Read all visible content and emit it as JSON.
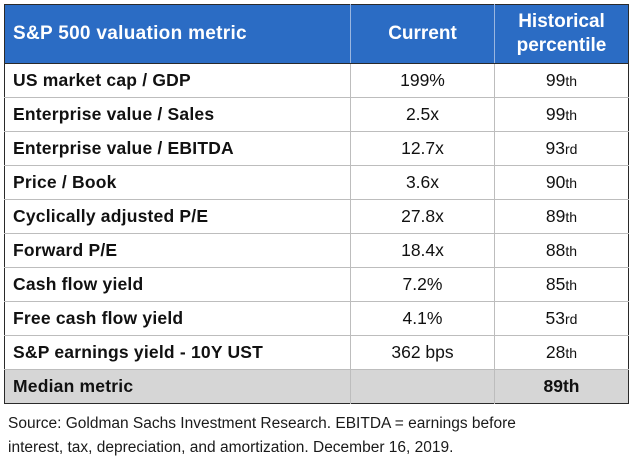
{
  "table": {
    "header": {
      "metric": "S&P 500 valuation metric",
      "current": "Current",
      "percentile_line1": "Historical",
      "percentile_line2": "percentile"
    },
    "rows": [
      {
        "metric": "US market cap / GDP",
        "current": "199%",
        "pct_num": "99",
        "pct_suffix": "th"
      },
      {
        "metric": "Enterprise value / Sales",
        "current": "2.5x",
        "pct_num": "99",
        "pct_suffix": "th"
      },
      {
        "metric": "Enterprise value / EBITDA",
        "current": "12.7x",
        "pct_num": "93",
        "pct_suffix": "rd"
      },
      {
        "metric": "Price / Book",
        "current": "3.6x",
        "pct_num": "90",
        "pct_suffix": "th"
      },
      {
        "metric": "Cyclically adjusted P/E",
        "current": "27.8x",
        "pct_num": "89",
        "pct_suffix": "th"
      },
      {
        "metric": "Forward P/E",
        "current": "18.4x",
        "pct_num": "88",
        "pct_suffix": "th"
      },
      {
        "metric": "Cash flow yield",
        "current": "7.2%",
        "pct_num": "85",
        "pct_suffix": "th"
      },
      {
        "metric": "Free cash flow yield",
        "current": "4.1%",
        "pct_num": "53",
        "pct_suffix": "rd"
      },
      {
        "metric": "S&P earnings yield - 10Y UST",
        "current": "362 bps",
        "pct_num": "28",
        "pct_suffix": "th"
      }
    ],
    "median": {
      "metric": "Median metric",
      "current": "",
      "percentile": "89th"
    }
  },
  "source": {
    "line1": "Source: Goldman Sachs Investment Research. EBITDA = earnings before",
    "line2": "interest, tax, depreciation, and amortization. December 16, 2019."
  },
  "colors": {
    "header_bg": "#2b6cc4",
    "header_text": "#ffffff",
    "median_bg": "#d6d6d6"
  }
}
